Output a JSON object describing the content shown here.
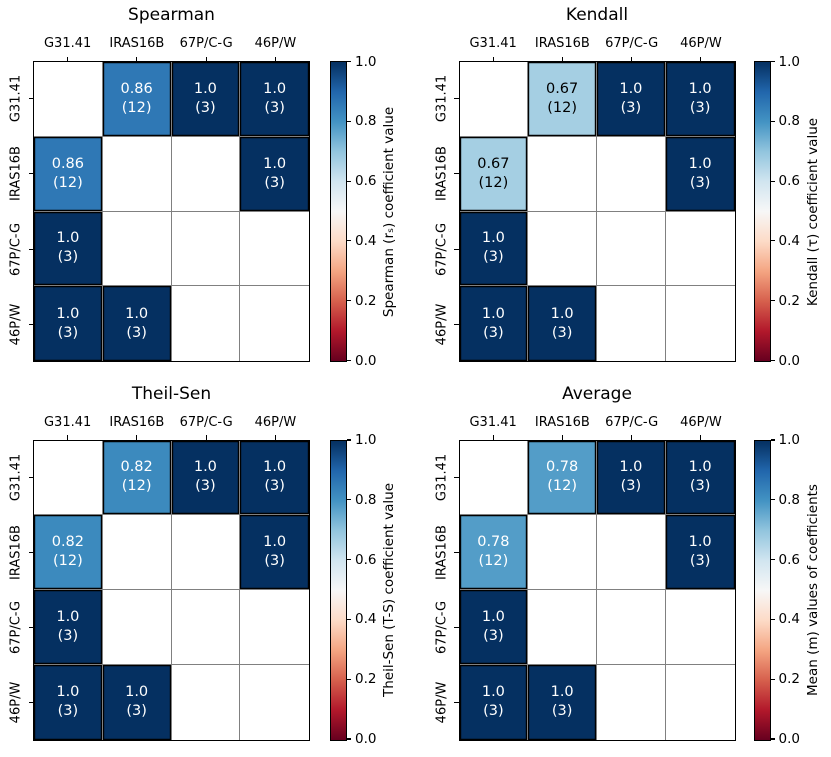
{
  "figure": {
    "background": "#ffffff",
    "grid_color": "#808080",
    "spine_color": "#000000",
    "colormap_stops": [
      "#67001f",
      "#b2182b",
      "#d6604d",
      "#f4a582",
      "#fddbc7",
      "#f7f7f7",
      "#d1e5f0",
      "#92c5de",
      "#4393c3",
      "#2166ac",
      "#053061"
    ],
    "x_categories": [
      "G31.41",
      "IRAS16B",
      "67P/C-G",
      "46P/W"
    ],
    "y_categories": [
      "G31.41",
      "IRAS16B",
      "67P/C-G",
      "46P/W"
    ],
    "colorbar_ticks": [
      "1.0",
      "0.8",
      "0.6",
      "0.4",
      "0.2",
      "0.0"
    ],
    "panels": [
      {
        "title": "Spearman",
        "colorbar_label": "Spearman (rₛ) coefficient value",
        "cells": [
          [
            null,
            {
              "value": 0.86,
              "label": "0.86",
              "count": "(12)"
            },
            {
              "value": 1.0,
              "label": "1.0",
              "count": "(3)"
            },
            {
              "value": 1.0,
              "label": "1.0",
              "count": "(3)"
            }
          ],
          [
            {
              "value": 0.86,
              "label": "0.86",
              "count": "(12)"
            },
            null,
            null,
            {
              "value": 1.0,
              "label": "1.0",
              "count": "(3)"
            }
          ],
          [
            {
              "value": 1.0,
              "label": "1.0",
              "count": "(3)"
            },
            null,
            null,
            null
          ],
          [
            {
              "value": 1.0,
              "label": "1.0",
              "count": "(3)"
            },
            {
              "value": 1.0,
              "label": "1.0",
              "count": "(3)"
            },
            null,
            null
          ]
        ]
      },
      {
        "title": "Kendall",
        "colorbar_label": "Kendall (τ) coefficient value",
        "cells": [
          [
            null,
            {
              "value": 0.67,
              "label": "0.67",
              "count": "(12)"
            },
            {
              "value": 1.0,
              "label": "1.0",
              "count": "(3)"
            },
            {
              "value": 1.0,
              "label": "1.0",
              "count": "(3)"
            }
          ],
          [
            {
              "value": 0.67,
              "label": "0.67",
              "count": "(12)"
            },
            null,
            null,
            {
              "value": 1.0,
              "label": "1.0",
              "count": "(3)"
            }
          ],
          [
            {
              "value": 1.0,
              "label": "1.0",
              "count": "(3)"
            },
            null,
            null,
            null
          ],
          [
            {
              "value": 1.0,
              "label": "1.0",
              "count": "(3)"
            },
            {
              "value": 1.0,
              "label": "1.0",
              "count": "(3)"
            },
            null,
            null
          ]
        ]
      },
      {
        "title": "Theil-Sen",
        "colorbar_label": "Theil-Sen (T-S) coefficient value",
        "cells": [
          [
            null,
            {
              "value": 0.82,
              "label": "0.82",
              "count": "(12)"
            },
            {
              "value": 1.0,
              "label": "1.0",
              "count": "(3)"
            },
            {
              "value": 1.0,
              "label": "1.0",
              "count": "(3)"
            }
          ],
          [
            {
              "value": 0.82,
              "label": "0.82",
              "count": "(12)"
            },
            null,
            null,
            {
              "value": 1.0,
              "label": "1.0",
              "count": "(3)"
            }
          ],
          [
            {
              "value": 1.0,
              "label": "1.0",
              "count": "(3)"
            },
            null,
            null,
            null
          ],
          [
            {
              "value": 1.0,
              "label": "1.0",
              "count": "(3)"
            },
            {
              "value": 1.0,
              "label": "1.0",
              "count": "(3)"
            },
            null,
            null
          ]
        ]
      },
      {
        "title": "Average",
        "colorbar_label": "Mean (m) values of coefficients",
        "cells": [
          [
            null,
            {
              "value": 0.78,
              "label": "0.78",
              "count": "(12)"
            },
            {
              "value": 1.0,
              "label": "1.0",
              "count": "(3)"
            },
            {
              "value": 1.0,
              "label": "1.0",
              "count": "(3)"
            }
          ],
          [
            {
              "value": 0.78,
              "label": "0.78",
              "count": "(12)"
            },
            null,
            null,
            {
              "value": 1.0,
              "label": "1.0",
              "count": "(3)"
            }
          ],
          [
            {
              "value": 1.0,
              "label": "1.0",
              "count": "(3)"
            },
            null,
            null,
            null
          ],
          [
            {
              "value": 1.0,
              "label": "1.0",
              "count": "(3)"
            },
            {
              "value": 1.0,
              "label": "1.0",
              "count": "(3)"
            },
            null,
            null
          ]
        ]
      }
    ]
  },
  "chart_data": [
    {
      "type": "heatmap",
      "title": "Spearman",
      "x": [
        "G31.41",
        "IRAS16B",
        "67P/C-G",
        "46P/W"
      ],
      "y": [
        "G31.41",
        "IRAS16B",
        "67P/C-G",
        "46P/W"
      ],
      "values": [
        [
          null,
          0.86,
          1.0,
          1.0
        ],
        [
          0.86,
          null,
          null,
          1.0
        ],
        [
          1.0,
          null,
          null,
          null
        ],
        [
          1.0,
          1.0,
          null,
          null
        ]
      ],
      "counts": [
        [
          null,
          12,
          3,
          3
        ],
        [
          12,
          null,
          null,
          3
        ],
        [
          3,
          null,
          null,
          null
        ],
        [
          3,
          3,
          null,
          null
        ]
      ],
      "colormap": "RdBu",
      "vmin": 0.0,
      "vmax": 1.0,
      "colorbar_label": "Spearman (rₛ) coefficient value",
      "colorbar_ticks": [
        1.0,
        0.8,
        0.6,
        0.4,
        0.2,
        0.0
      ],
      "legend_position": "right"
    },
    {
      "type": "heatmap",
      "title": "Kendall",
      "x": [
        "G31.41",
        "IRAS16B",
        "67P/C-G",
        "46P/W"
      ],
      "y": [
        "G31.41",
        "IRAS16B",
        "67P/C-G",
        "46P/W"
      ],
      "values": [
        [
          null,
          0.67,
          1.0,
          1.0
        ],
        [
          0.67,
          null,
          null,
          1.0
        ],
        [
          1.0,
          null,
          null,
          null
        ],
        [
          1.0,
          1.0,
          null,
          null
        ]
      ],
      "counts": [
        [
          null,
          12,
          3,
          3
        ],
        [
          12,
          null,
          null,
          3
        ],
        [
          3,
          null,
          null,
          null
        ],
        [
          3,
          3,
          null,
          null
        ]
      ],
      "colormap": "RdBu",
      "vmin": 0.0,
      "vmax": 1.0,
      "colorbar_label": "Kendall (τ) coefficient value",
      "colorbar_ticks": [
        1.0,
        0.8,
        0.6,
        0.4,
        0.2,
        0.0
      ],
      "legend_position": "right"
    },
    {
      "type": "heatmap",
      "title": "Theil-Sen",
      "x": [
        "G31.41",
        "IRAS16B",
        "67P/C-G",
        "46P/W"
      ],
      "y": [
        "G31.41",
        "IRAS16B",
        "67P/C-G",
        "46P/W"
      ],
      "values": [
        [
          null,
          0.82,
          1.0,
          1.0
        ],
        [
          0.82,
          null,
          null,
          1.0
        ],
        [
          1.0,
          null,
          null,
          null
        ],
        [
          1.0,
          1.0,
          null,
          null
        ]
      ],
      "counts": [
        [
          null,
          12,
          3,
          3
        ],
        [
          12,
          null,
          null,
          3
        ],
        [
          3,
          null,
          null,
          null
        ],
        [
          3,
          3,
          null,
          null
        ]
      ],
      "colormap": "RdBu",
      "vmin": 0.0,
      "vmax": 1.0,
      "colorbar_label": "Theil-Sen (T-S) coefficient value",
      "colorbar_ticks": [
        1.0,
        0.8,
        0.6,
        0.4,
        0.2,
        0.0
      ],
      "legend_position": "right"
    },
    {
      "type": "heatmap",
      "title": "Average",
      "x": [
        "G31.41",
        "IRAS16B",
        "67P/C-G",
        "46P/W"
      ],
      "y": [
        "G31.41",
        "IRAS16B",
        "67P/C-G",
        "46P/W"
      ],
      "values": [
        [
          null,
          0.78,
          1.0,
          1.0
        ],
        [
          0.78,
          null,
          null,
          1.0
        ],
        [
          1.0,
          null,
          null,
          null
        ],
        [
          1.0,
          1.0,
          null,
          null
        ]
      ],
      "counts": [
        [
          null,
          12,
          3,
          3
        ],
        [
          12,
          null,
          null,
          3
        ],
        [
          3,
          null,
          null,
          null
        ],
        [
          3,
          3,
          null,
          null
        ]
      ],
      "colormap": "RdBu",
      "vmin": 0.0,
      "vmax": 1.0,
      "colorbar_label": "Mean (m) values of coefficients",
      "colorbar_ticks": [
        1.0,
        0.8,
        0.6,
        0.4,
        0.2,
        0.0
      ],
      "legend_position": "right"
    }
  ]
}
